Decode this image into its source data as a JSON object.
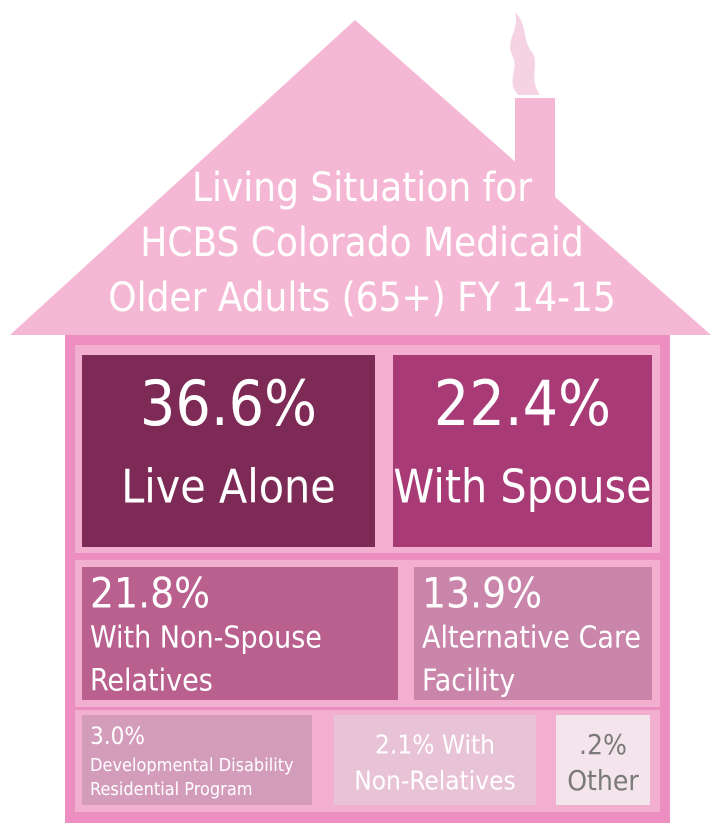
{
  "header": {
    "title": [
      "Living Situation for",
      "HCBS Colorado Medicaid",
      "Older Adults (65+) FY 14-15"
    ]
  },
  "tiles": [
    {
      "lines": [
        "36.6%",
        "Live Alone"
      ]
    },
    {
      "lines": [
        "22.4%",
        "With Spouse"
      ]
    },
    {
      "lines": [
        "21.8%",
        "With Non-Spouse",
        "Relatives"
      ]
    },
    {
      "lines": [
        "13.9%",
        "Alternative Care",
        "Facility"
      ]
    },
    {
      "lines": [
        "3.0%",
        "Developmental Disability",
        "Residential Program"
      ]
    },
    {
      "lines": [
        "2.1% With",
        "Non-Relatives"
      ]
    },
    {
      "lines": [
        ".2%",
        "Other"
      ]
    }
  ]
}
